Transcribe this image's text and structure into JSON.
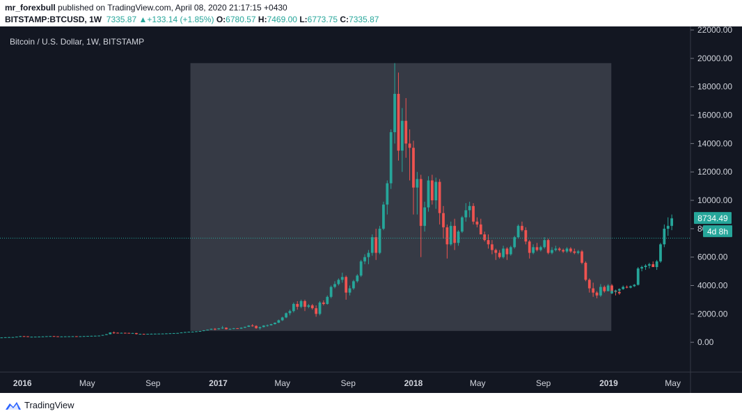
{
  "header": {
    "author": "mr_forexbull",
    "published_text": "published on TradingView.com, April 08, 2020 21:17:15 +0430",
    "symbol": "BITSTAMP:BTCUSD, 1W",
    "last": "7335.87",
    "change_arrow": "▲",
    "change": "+133.14 (+1.85%)",
    "o_label": "O:",
    "o_value": "6780.57",
    "h_label": "H:",
    "h_value": "7469.00",
    "l_label": "L:",
    "l_value": "6773.75",
    "c_label": "C:",
    "c_value": "7335.87"
  },
  "chart_title": "Bitcoin / U.S. Dollar, 1W, BITSTAMP",
  "price_badge": "8734.49",
  "countdown_badge": "4d 8h",
  "footer": {
    "brand": "TradingView",
    "logo_icon": "tradingview-logo-icon"
  },
  "colors": {
    "background": "#131722",
    "up": "#26a69a",
    "down": "#ef5350",
    "highlight": "#363a45",
    "price_line": "#26a69a"
  },
  "chart_data": {
    "type": "candlestick",
    "title": "Bitcoin / U.S. Dollar, 1W, BITSTAMP",
    "y_ticks": [
      "22000.00",
      "20000.00",
      "18000.00",
      "16000.00",
      "14000.00",
      "12000.00",
      "10000.00",
      "8000.00",
      "6000.00",
      "4000.00",
      "2000.00",
      "0.00"
    ],
    "y_tick_values": [
      22000,
      20000,
      18000,
      16000,
      14000,
      12000,
      10000,
      8000,
      6000,
      4000,
      2000,
      0
    ],
    "x_ticks": [
      "2016",
      "May",
      "Sep",
      "2017",
      "May",
      "Sep",
      "2018",
      "May",
      "Sep",
      "2019",
      "May"
    ],
    "x_tick_dates": [
      "2016-01-01",
      "2016-05-01",
      "2016-09-01",
      "2017-01-01",
      "2017-05-01",
      "2017-09-01",
      "2018-01-01",
      "2018-05-01",
      "2018-09-01",
      "2019-01-01",
      "2019-05-01"
    ],
    "x_range": [
      "2015-11-20",
      "2019-06-03"
    ],
    "ylim": [
      -2100,
      22250
    ],
    "highlight_box": {
      "x_start": "2016-11-10",
      "x_end": "2019-01-06",
      "y_low": 800,
      "y_high": 19666
    },
    "price_line": 7335.87,
    "last_price": 8734.49,
    "start_date": "2015-11-23",
    "candles": [
      [
        325,
        350,
        310,
        340
      ],
      [
        340,
        360,
        330,
        355
      ],
      [
        355,
        375,
        345,
        360
      ],
      [
        360,
        370,
        350,
        365
      ],
      [
        365,
        400,
        360,
        395
      ],
      [
        395,
        450,
        380,
        430
      ],
      [
        430,
        440,
        400,
        420
      ],
      [
        420,
        430,
        380,
        385
      ],
      [
        385,
        400,
        370,
        390
      ],
      [
        390,
        400,
        380,
        395
      ],
      [
        395,
        410,
        385,
        400
      ],
      [
        400,
        420,
        395,
        410
      ],
      [
        410,
        430,
        400,
        425
      ],
      [
        425,
        440,
        415,
        435
      ],
      [
        435,
        440,
        410,
        420
      ],
      [
        420,
        425,
        400,
        405
      ],
      [
        405,
        415,
        395,
        410
      ],
      [
        410,
        420,
        400,
        415
      ],
      [
        415,
        425,
        410,
        420
      ],
      [
        420,
        430,
        415,
        425
      ],
      [
        425,
        430,
        415,
        420
      ],
      [
        420,
        430,
        415,
        425
      ],
      [
        425,
        440,
        420,
        435
      ],
      [
        435,
        450,
        430,
        445
      ],
      [
        445,
        460,
        440,
        455
      ],
      [
        455,
        470,
        450,
        460
      ],
      [
        460,
        480,
        450,
        470
      ],
      [
        470,
        520,
        465,
        515
      ],
      [
        515,
        580,
        510,
        570
      ],
      [
        570,
        700,
        560,
        690
      ],
      [
        690,
        760,
        600,
        670
      ],
      [
        670,
        700,
        620,
        650
      ],
      [
        650,
        680,
        630,
        665
      ],
      [
        665,
        680,
        640,
        660
      ],
      [
        660,
        670,
        620,
        640
      ],
      [
        640,
        660,
        630,
        650
      ],
      [
        650,
        660,
        550,
        580
      ],
      [
        580,
        600,
        560,
        590
      ],
      [
        590,
        600,
        570,
        585
      ],
      [
        585,
        600,
        575,
        595
      ],
      [
        595,
        610,
        590,
        600
      ],
      [
        600,
        610,
        595,
        605
      ],
      [
        605,
        615,
        600,
        610
      ],
      [
        610,
        620,
        600,
        615
      ],
      [
        615,
        630,
        605,
        625
      ],
      [
        625,
        640,
        620,
        635
      ],
      [
        635,
        650,
        630,
        645
      ],
      [
        645,
        660,
        640,
        655
      ],
      [
        655,
        700,
        650,
        690
      ],
      [
        690,
        730,
        680,
        720
      ],
      [
        720,
        750,
        710,
        740
      ],
      [
        740,
        760,
        720,
        745
      ],
      [
        745,
        780,
        740,
        770
      ],
      [
        770,
        800,
        760,
        790
      ],
      [
        790,
        850,
        780,
        840
      ],
      [
        840,
        900,
        830,
        890
      ],
      [
        890,
        960,
        880,
        950
      ],
      [
        950,
        1000,
        850,
        920
      ],
      [
        920,
        1000,
        900,
        980
      ],
      [
        980,
        1150,
        940,
        1030
      ],
      [
        1030,
        1050,
        900,
        920
      ],
      [
        920,
        960,
        880,
        950
      ],
      [
        950,
        1000,
        920,
        990
      ],
      [
        990,
        1000,
        940,
        960
      ],
      [
        960,
        1050,
        950,
        1030
      ],
      [
        1030,
        1100,
        1000,
        1090
      ],
      [
        1090,
        1200,
        1080,
        1180
      ],
      [
        1180,
        1280,
        1100,
        1150
      ],
      [
        1150,
        1200,
        950,
        1000
      ],
      [
        1000,
        1100,
        900,
        1070
      ],
      [
        1070,
        1200,
        1050,
        1180
      ],
      [
        1180,
        1250,
        1100,
        1200
      ],
      [
        1200,
        1300,
        1180,
        1280
      ],
      [
        1280,
        1400,
        1250,
        1380
      ],
      [
        1380,
        1600,
        1350,
        1550
      ],
      [
        1550,
        1800,
        1500,
        1750
      ],
      [
        1750,
        2100,
        1700,
        2050
      ],
      [
        2050,
        2300,
        1900,
        2200
      ],
      [
        2200,
        2800,
        2100,
        2700
      ],
      [
        2700,
        2900,
        2300,
        2500
      ],
      [
        2500,
        3000,
        2400,
        2900
      ],
      [
        2900,
        3000,
        2200,
        2500
      ],
      [
        2500,
        2700,
        2400,
        2600
      ],
      [
        2600,
        2700,
        2300,
        2400
      ],
      [
        2400,
        2600,
        1800,
        2000
      ],
      [
        2000,
        2900,
        1900,
        2800
      ],
      [
        2800,
        2950,
        2600,
        2700
      ],
      [
        2700,
        3300,
        2650,
        3200
      ],
      [
        3200,
        4000,
        3100,
        3900
      ],
      [
        3900,
        4300,
        3800,
        4100
      ],
      [
        4100,
        4500,
        4000,
        4400
      ],
      [
        4400,
        4900,
        4200,
        4600
      ],
      [
        4600,
        4700,
        3000,
        3500
      ],
      [
        3500,
        4000,
        3300,
        3800
      ],
      [
        3800,
        4400,
        3700,
        4300
      ],
      [
        4300,
        4800,
        4200,
        4700
      ],
      [
        4700,
        5800,
        4600,
        5700
      ],
      [
        5700,
        6200,
        5500,
        6000
      ],
      [
        6000,
        6500,
        5500,
        6300
      ],
      [
        6300,
        7600,
        6100,
        7400
      ],
      [
        7400,
        8000,
        5800,
        6300
      ],
      [
        6300,
        8200,
        6200,
        8000
      ],
      [
        8000,
        9900,
        7900,
        9700
      ],
      [
        9700,
        11400,
        9000,
        11200
      ],
      [
        11200,
        15000,
        10800,
        14800
      ],
      [
        14800,
        19666,
        14000,
        17500
      ],
      [
        17500,
        19000,
        12800,
        13500
      ],
      [
        13500,
        16500,
        12000,
        15600
      ],
      [
        15600,
        17200,
        13000,
        14000
      ],
      [
        14000,
        15000,
        11400,
        13700
      ],
      [
        13700,
        14200,
        9000,
        10900
      ],
      [
        10900,
        12000,
        9000,
        11500
      ],
      [
        11500,
        11800,
        6000,
        8200
      ],
      [
        8200,
        9900,
        7800,
        9500
      ],
      [
        9500,
        11700,
        9200,
        11400
      ],
      [
        11400,
        11800,
        9700,
        10000
      ],
      [
        10000,
        11600,
        9400,
        11300
      ],
      [
        11300,
        11500,
        8300,
        9100
      ],
      [
        9100,
        9600,
        7300,
        8100
      ],
      [
        8100,
        8300,
        5900,
        6900
      ],
      [
        6900,
        8500,
        6800,
        8200
      ],
      [
        8200,
        8700,
        6500,
        7000
      ],
      [
        7000,
        7900,
        6800,
        7800
      ],
      [
        7800,
        8900,
        7700,
        8800
      ],
      [
        8800,
        9800,
        8500,
        9300
      ],
      [
        9300,
        9900,
        8800,
        9600
      ],
      [
        9600,
        9800,
        8300,
        8500
      ],
      [
        8500,
        8800,
        8100,
        8300
      ],
      [
        8300,
        8700,
        7700,
        7600
      ],
      [
        7600,
        7800,
        7100,
        7200
      ],
      [
        7200,
        7600,
        6600,
        6900
      ],
      [
        6900,
        7200,
        6200,
        6500
      ],
      [
        6500,
        6600,
        5800,
        6300
      ],
      [
        6300,
        6500,
        5900,
        6000
      ],
      [
        6000,
        6800,
        5900,
        6600
      ],
      [
        6600,
        6700,
        5800,
        6200
      ],
      [
        6200,
        6800,
        6100,
        6700
      ],
      [
        6700,
        7500,
        6600,
        7400
      ],
      [
        7400,
        8300,
        7300,
        8200
      ],
      [
        8200,
        8500,
        7800,
        7900
      ],
      [
        7900,
        8100,
        6900,
        7100
      ],
      [
        7100,
        7200,
        5900,
        6300
      ],
      [
        6300,
        6900,
        6200,
        6700
      ],
      [
        6700,
        7000,
        6400,
        6500
      ],
      [
        6500,
        6800,
        6400,
        6700
      ],
      [
        6700,
        7400,
        6600,
        7200
      ],
      [
        7200,
        7300,
        6200,
        6300
      ],
      [
        6300,
        6700,
        6200,
        6500
      ],
      [
        6500,
        6800,
        6400,
        6600
      ],
      [
        6600,
        6700,
        6400,
        6500
      ],
      [
        6500,
        6600,
        6300,
        6400
      ],
      [
        6400,
        6700,
        6300,
        6600
      ],
      [
        6600,
        6700,
        6300,
        6400
      ],
      [
        6400,
        6600,
        6200,
        6300
      ],
      [
        6300,
        6500,
        6200,
        6400
      ],
      [
        6400,
        6500,
        5500,
        5600
      ],
      [
        5600,
        5700,
        4300,
        4400
      ],
      [
        4400,
        4500,
        3500,
        3800
      ],
      [
        3800,
        4200,
        3200,
        3500
      ],
      [
        3500,
        3600,
        3100,
        3300
      ],
      [
        3300,
        4100,
        3200,
        3900
      ],
      [
        3900,
        4000,
        3500,
        3600
      ],
      [
        3600,
        4100,
        3600,
        4000
      ],
      [
        4000,
        4100,
        3400,
        3600
      ],
      [
        3600,
        3700,
        3300,
        3550
      ],
      [
        3550,
        3650,
        3350,
        3450
      ]
    ],
    "late_candles": [
      [
        3450,
        3700,
        3400,
        3600
      ],
      [
        3600,
        3700,
        3450,
        3650
      ],
      [
        3650,
        3800,
        3550,
        3750
      ],
      [
        3750,
        4000,
        3700,
        3900
      ],
      [
        3900,
        4000,
        3800,
        3850
      ],
      [
        3850,
        4000,
        3800,
        3950
      ],
      [
        3950,
        4100,
        3900,
        4050
      ],
      [
        4050,
        5300,
        4000,
        5200
      ],
      [
        5200,
        5400,
        5000,
        5300
      ],
      [
        5300,
        5500,
        5100,
        5400
      ],
      [
        5400,
        5600,
        5200,
        5500
      ],
      [
        5500,
        5700,
        5300,
        5300
      ],
      [
        5300,
        5800,
        5100,
        5700
      ],
      [
        5700,
        7000,
        5600,
        6900
      ],
      [
        6900,
        8300,
        6700,
        8000
      ],
      [
        8000,
        8800,
        7500,
        8200
      ],
      [
        8200,
        9000,
        7900,
        8734
      ]
    ]
  }
}
